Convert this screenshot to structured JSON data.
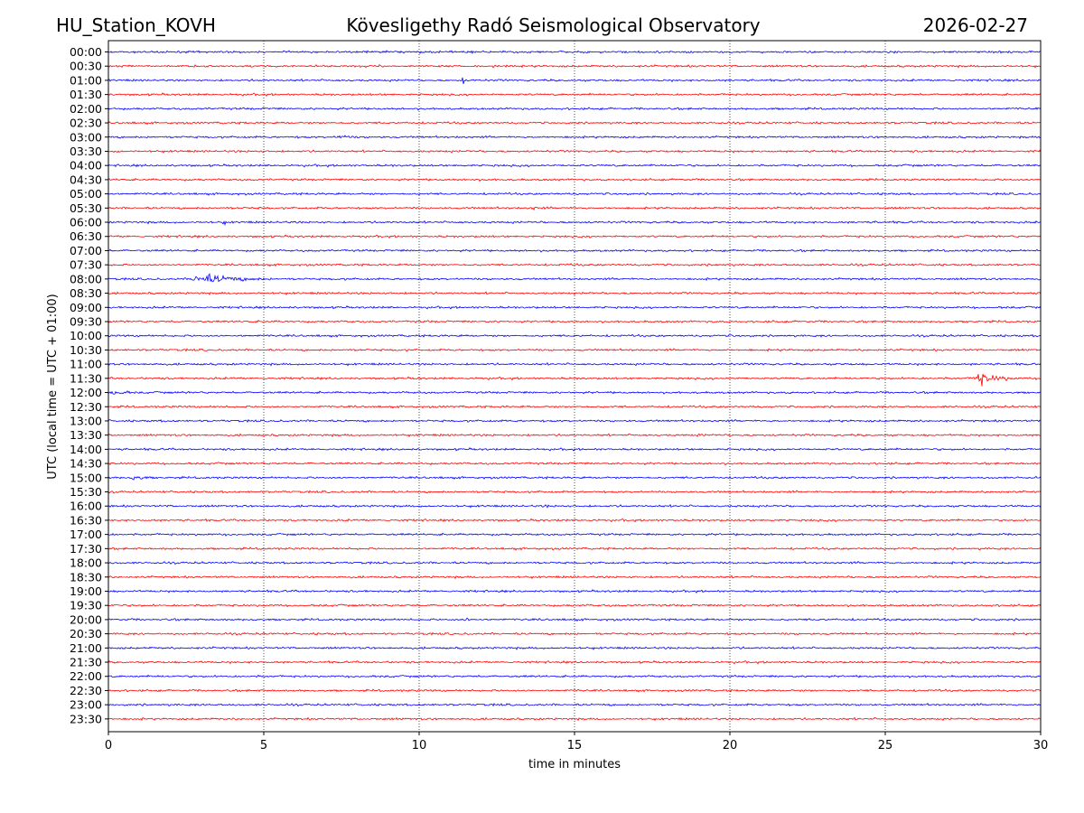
{
  "header": {
    "station": "HU_Station_KOVH",
    "observatory": "Kövesligethy Radó Seismological Observatory",
    "date": "2026-02-27"
  },
  "colors": {
    "even_trace": "#0000ff",
    "odd_trace": "#ff0000",
    "axis": "#000000",
    "grid": "#000000"
  },
  "chart_data": {
    "type": "line",
    "title": "Kövesligethy Radó Seismological Observatory",
    "xlabel": "time in minutes",
    "ylabel": "UTC (local time = UTC + 01:00)",
    "xlim": [
      0,
      30
    ],
    "xticks": [
      0,
      5,
      10,
      15,
      20,
      25,
      30
    ],
    "vertical_gridlines_at": [
      5,
      10,
      15,
      20,
      25
    ],
    "rows": [
      "00:00",
      "00:30",
      "01:00",
      "01:30",
      "02:00",
      "02:30",
      "03:00",
      "03:30",
      "04:00",
      "04:30",
      "05:00",
      "05:30",
      "06:00",
      "06:30",
      "07:00",
      "07:30",
      "08:00",
      "08:30",
      "09:00",
      "09:30",
      "10:00",
      "10:30",
      "11:00",
      "11:30",
      "12:00",
      "12:30",
      "13:00",
      "13:30",
      "14:00",
      "14:30",
      "15:00",
      "15:30",
      "16:00",
      "16:30",
      "17:00",
      "17:30",
      "18:00",
      "18:30",
      "19:00",
      "19:30",
      "20:00",
      "20:30",
      "21:00",
      "21:30",
      "22:00",
      "22:30",
      "23:00",
      "23:30"
    ],
    "trace_color_pattern": [
      "blue",
      "red"
    ],
    "noise_level": 1,
    "events": [
      {
        "row": "00:00",
        "start_min": 9.8,
        "duration_min": 0.4,
        "amplitude": 1.5
      },
      {
        "row": "01:00",
        "start_min": 11.3,
        "duration_min": 0.2,
        "amplitude": 4.5
      },
      {
        "row": "03:00",
        "start_min": 7.3,
        "duration_min": 1.5,
        "amplitude": 2.5
      },
      {
        "row": "03:30",
        "start_min": 0.2,
        "duration_min": 0.5,
        "amplitude": 2.2
      },
      {
        "row": "03:30",
        "start_min": 27.0,
        "duration_min": 0.8,
        "amplitude": 2.0
      },
      {
        "row": "05:30",
        "start_min": 13.5,
        "duration_min": 0.4,
        "amplitude": 1.8
      },
      {
        "row": "06:00",
        "start_min": 3.5,
        "duration_min": 0.4,
        "amplitude": 2.0
      },
      {
        "row": "06:00",
        "start_min": 24.5,
        "duration_min": 1.2,
        "amplitude": 1.5
      },
      {
        "row": "07:30",
        "start_min": 19.5,
        "duration_min": 0.5,
        "amplitude": 1.8
      },
      {
        "row": "08:00",
        "start_min": 2.6,
        "duration_min": 3.2,
        "amplitude": 6.0
      },
      {
        "row": "09:00",
        "start_min": 28.7,
        "duration_min": 0.6,
        "amplitude": 1.8
      },
      {
        "row": "09:30",
        "start_min": 10.3,
        "duration_min": 0.6,
        "amplitude": 1.6
      },
      {
        "row": "10:00",
        "start_min": 9.6,
        "duration_min": 0.5,
        "amplitude": 1.6
      },
      {
        "row": "11:30",
        "start_min": 27.8,
        "duration_min": 1.7,
        "amplitude": 7.5
      },
      {
        "row": "12:00",
        "start_min": 0.0,
        "duration_min": 1.4,
        "amplitude": 3.5
      },
      {
        "row": "12:00",
        "start_min": 21.8,
        "duration_min": 0.5,
        "amplitude": 1.6
      },
      {
        "row": "13:30",
        "start_min": 18.9,
        "duration_min": 0.3,
        "amplitude": 2.0
      },
      {
        "row": "15:00",
        "start_min": 0.7,
        "duration_min": 1.2,
        "amplitude": 3.5
      },
      {
        "row": "15:30",
        "start_min": 26.2,
        "duration_min": 0.6,
        "amplitude": 1.6
      },
      {
        "row": "16:00",
        "start_min": 14.0,
        "duration_min": 0.8,
        "amplitude": 1.8
      },
      {
        "row": "20:00",
        "start_min": 11.4,
        "duration_min": 0.3,
        "amplitude": 2.2
      }
    ]
  }
}
